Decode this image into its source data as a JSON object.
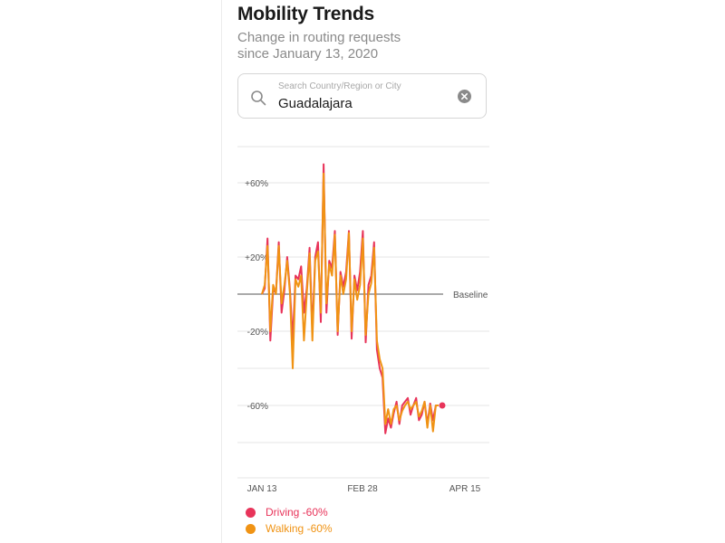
{
  "header": {
    "title": "Mobility Trends",
    "subtitle_line1": "Change in routing requests",
    "subtitle_line2": "since January 13, 2020"
  },
  "search": {
    "placeholder": "Search Country/Region or City",
    "value": "Guadalajara",
    "icon": "search-icon",
    "clear_icon": "clear-icon"
  },
  "colors": {
    "driving": "#e8345a",
    "walking": "#f09314",
    "grid": "#e6e6e6",
    "baseline": "#555555",
    "tick_text": "#555555"
  },
  "chart_data": {
    "type": "line",
    "x_start": "2020-01-13",
    "x_end": "2020-04-15",
    "xlabels": [
      "JAN 13",
      "FEB 28",
      "APR 15"
    ],
    "ylim": [
      -80,
      68
    ],
    "yticks": [
      60,
      20,
      -20,
      -60
    ],
    "ytick_labels": [
      "+60%",
      "+20%",
      "-20%",
      "-60%"
    ],
    "gridlines": [
      60,
      40,
      20,
      -20,
      -40,
      -60,
      -80
    ],
    "baseline_label": "Baseline",
    "grid": true,
    "series": [
      {
        "name": "Driving",
        "legend_label": "Driving -60%",
        "values": [
          0,
          3,
          30,
          -25,
          2,
          1,
          28,
          -10,
          2,
          20,
          2,
          -25,
          10,
          8,
          15,
          -10,
          3,
          25,
          -20,
          20,
          28,
          -15,
          70,
          -10,
          18,
          14,
          34,
          -22,
          12,
          4,
          12,
          34,
          -24,
          10,
          2,
          12,
          34,
          -26,
          5,
          10,
          28,
          -30,
          -40,
          -45,
          -75,
          -67,
          -72,
          -64,
          -58,
          -70,
          -60,
          -58,
          -56,
          -65,
          -60,
          -56,
          -68,
          -65,
          -58,
          -70,
          -59,
          -68,
          -60,
          -60
        ],
        "last_value_label": "-60%"
      },
      {
        "name": "Walking",
        "legend_label": "Walking -60%",
        "values": [
          0,
          5,
          26,
          -20,
          5,
          0,
          26,
          -5,
          5,
          18,
          0,
          -40,
          8,
          4,
          10,
          -25,
          0,
          22,
          -25,
          18,
          23,
          -10,
          65,
          -5,
          16,
          10,
          32,
          -20,
          10,
          0,
          8,
          33,
          -20,
          8,
          -3,
          5,
          30,
          -22,
          0,
          6,
          25,
          -25,
          -35,
          -40,
          -70,
          -62,
          -70,
          -62,
          -60,
          -68,
          -63,
          -60,
          -58,
          -62,
          -60,
          -58,
          -66,
          -63,
          -58,
          -72,
          -60,
          -74,
          -60,
          -60
        ],
        "last_value_label": "-60%"
      }
    ]
  }
}
